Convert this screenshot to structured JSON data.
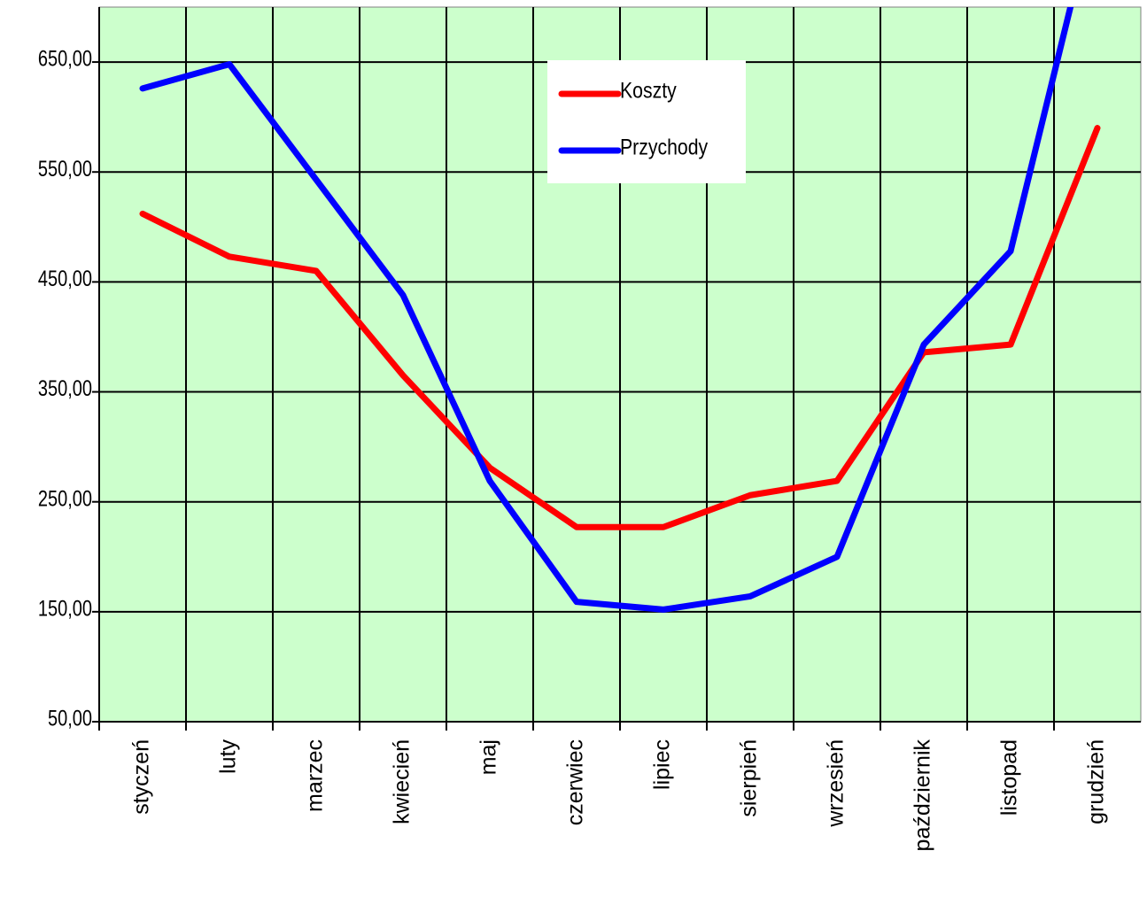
{
  "chart_data": {
    "type": "line",
    "categories": [
      "styczeń",
      "luty",
      "marzec",
      "kwiecień",
      "maj",
      "czerwiec",
      "lipiec",
      "sierpień",
      "wrzesień",
      "październik",
      "listopad",
      "grudzień"
    ],
    "series": [
      {
        "name": "Koszty",
        "color": "#ff0000",
        "values": [
          512,
          473,
          460,
          365,
          281,
          227,
          227,
          256,
          269,
          386,
          393,
          590
        ]
      },
      {
        "name": "Przychody",
        "color": "#0000ff",
        "values": [
          626,
          648,
          543,
          438,
          269,
          159,
          152,
          164,
          200,
          393,
          478,
          800
        ]
      }
    ],
    "ylim": [
      50,
      700
    ],
    "yticks": [
      {
        "value": 50,
        "label": "50,00"
      },
      {
        "value": 150,
        "label": "150,00"
      },
      {
        "value": 250,
        "label": "250,00"
      },
      {
        "value": 350,
        "label": "350,00"
      },
      {
        "value": 450,
        "label": "450,00"
      },
      {
        "value": 550,
        "label": "550,00"
      },
      {
        "value": 650,
        "label": "650,00"
      }
    ],
    "grid": true,
    "background": "#ccffcc",
    "legend": "top-center"
  }
}
